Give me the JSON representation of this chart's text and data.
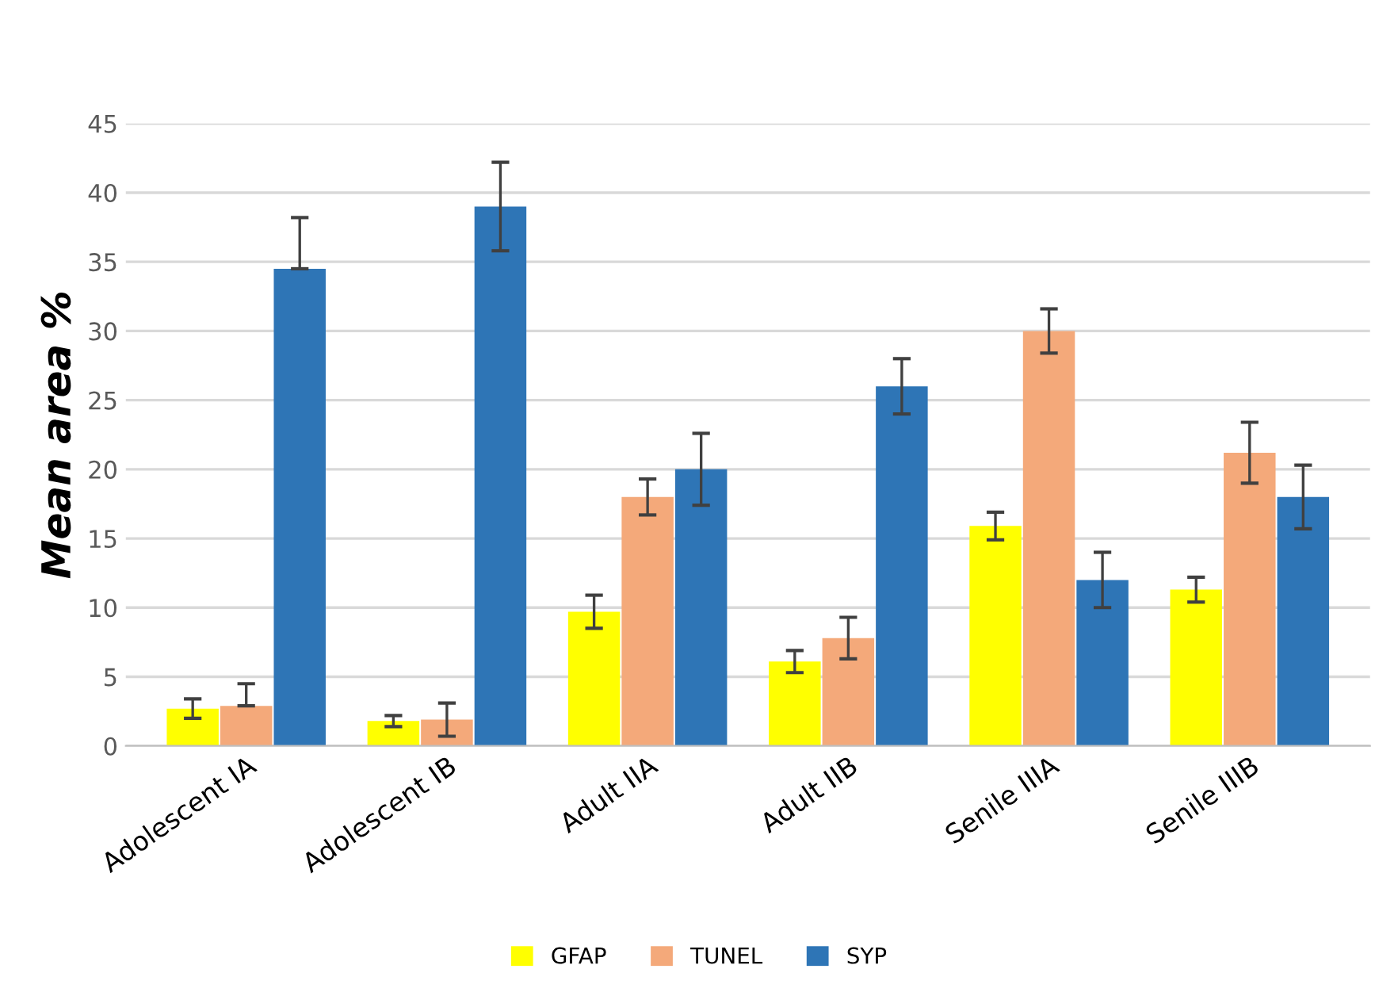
{
  "chart_data": {
    "type": "bar",
    "ylabel": "Mean area %",
    "categories": [
      "Adolescent IA",
      "Adolescent IB",
      "Adult IIA",
      "Adult IIB",
      "Senile IIIA",
      "Senile IIIB"
    ],
    "series": [
      {
        "name": "GFAP",
        "color": "#ffff00",
        "values": [
          2.7,
          1.8,
          9.7,
          6.1,
          15.9,
          11.3
        ],
        "errors": [
          0.7,
          0.4,
          1.2,
          0.8,
          1.0,
          0.9
        ]
      },
      {
        "name": "TUNEL",
        "color": "#f4a97a",
        "values": [
          2.9,
          1.9,
          18,
          7.8,
          30,
          21.2
        ],
        "errors": [
          [
            2.9,
            4.5
          ],
          1.2,
          1.3,
          1.5,
          1.6,
          2.2
        ]
      },
      {
        "name": "SYP",
        "color": "#2e75b6",
        "values": [
          34.5,
          39,
          20,
          26,
          12,
          18
        ],
        "errors": [
          [
            34.5,
            38.2
          ],
          3.2,
          2.6,
          2.0,
          2.0,
          2.3
        ]
      }
    ],
    "ylim": [
      0,
      45
    ],
    "yticks": [
      0,
      5,
      10,
      15,
      20,
      25,
      30,
      35,
      40,
      45
    ],
    "grid": "y",
    "legend": "bottom"
  }
}
